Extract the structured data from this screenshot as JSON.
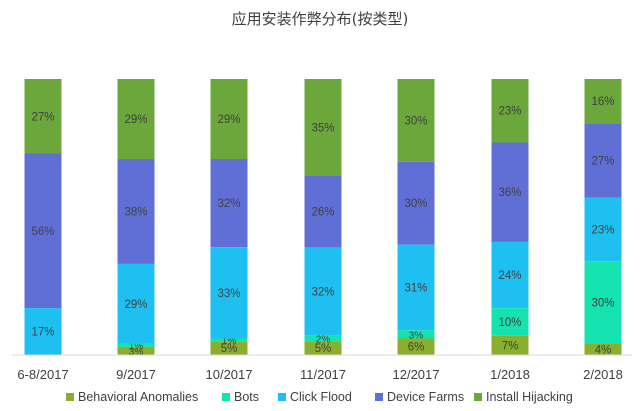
{
  "chart_data": {
    "type": "bar",
    "stacked": true,
    "percent": true,
    "title": "应用安装作弊分布(按类型)",
    "xlabel": "",
    "ylabel": "",
    "ylim": [
      0,
      100
    ],
    "grid": false,
    "legend_position": "bottom",
    "categories": [
      "6-8/2017",
      "9/2017",
      "10/2017",
      "11/2017",
      "12/2017",
      "1/2018",
      "2/2018"
    ],
    "series": [
      {
        "name": "Behavioral Anomalies",
        "color": "#8aaf2c",
        "values": [
          0,
          3,
          5,
          5,
          6,
          7,
          4
        ],
        "labels": [
          "",
          "3%",
          "5%",
          "5%",
          "6%",
          "7%",
          "4%"
        ]
      },
      {
        "name": "Bots",
        "color": "#14e3b0",
        "values": [
          0,
          1,
          1,
          2,
          3,
          10,
          30
        ],
        "labels": [
          "",
          "1%",
          "1%",
          "2%",
          "3%",
          "10%",
          "30%"
        ]
      },
      {
        "name": "Click Flood",
        "color": "#1ec0f2",
        "values": [
          17,
          29,
          33,
          32,
          31,
          24,
          23
        ],
        "labels": [
          "17%",
          "29%",
          "33%",
          "32%",
          "31%",
          "24%",
          "23%"
        ]
      },
      {
        "name": "Device Farms",
        "color": "#5f6fd6",
        "values": [
          56,
          38,
          32,
          26,
          30,
          36,
          27
        ],
        "labels": [
          "56%",
          "38%",
          "32%",
          "26%",
          "30%",
          "36%",
          "27%"
        ]
      },
      {
        "name": "Install Hijacking",
        "color": "#6ba73b",
        "values": [
          27,
          29,
          29,
          35,
          30,
          23,
          16
        ],
        "labels": [
          "27%",
          "29%",
          "29%",
          "35%",
          "30%",
          "23%",
          "16%"
        ]
      }
    ]
  }
}
